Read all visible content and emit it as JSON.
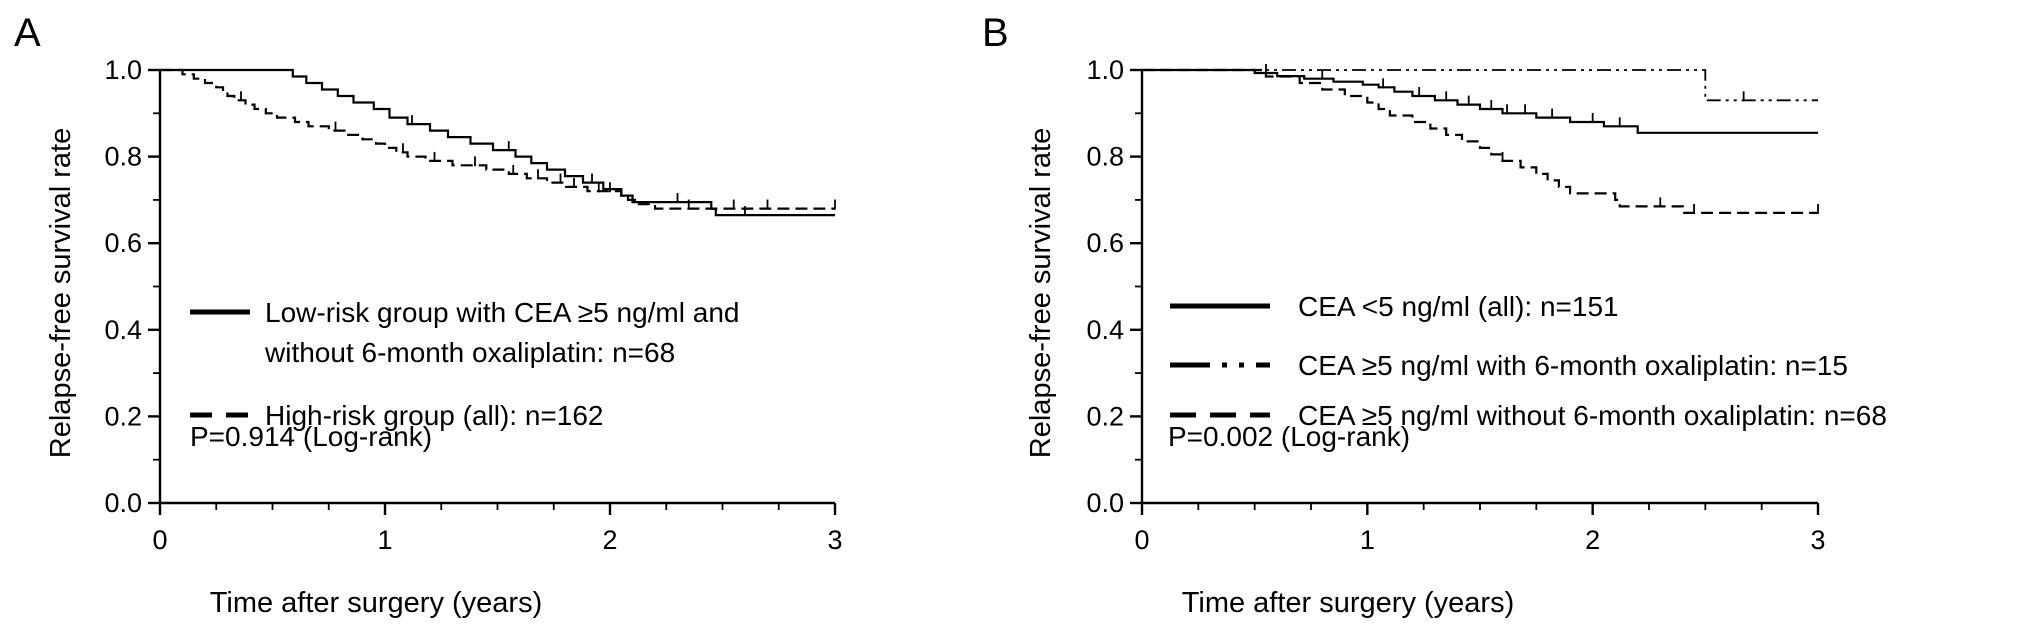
{
  "chart_data": [
    {
      "type": "line",
      "panel": "A",
      "xlabel": "Time after surgery (years)",
      "ylabel": "Relapse-free survival rate",
      "xlim": [
        0,
        3
      ],
      "ylim": [
        0,
        1.0
      ],
      "x_ticks": [
        "0",
        "1",
        "2",
        "3"
      ],
      "y_ticks": [
        "0.0",
        "0.2",
        "0.4",
        "0.6",
        "0.8",
        "1.0"
      ],
      "grid": false,
      "legend_position": "lower-left",
      "annotation": "P=0.914 (Log-rank)",
      "series": [
        {
          "name": "Low-risk group with CEA ≥5 ng/ml and without 6-month oxaliplatin: n=68",
          "legend_lines": [
            "Low-risk group with CEA ≥5 ng/ml and",
            "without 6-month oxaliplatin: n=68"
          ],
          "style": "solid",
          "steps": [
            [
              0,
              1.0
            ],
            [
              0.59,
              0.985
            ],
            [
              0.65,
              0.97
            ],
            [
              0.72,
              0.955
            ],
            [
              0.79,
              0.94
            ],
            [
              0.86,
              0.925
            ],
            [
              0.95,
              0.91
            ],
            [
              1.02,
              0.89
            ],
            [
              1.1,
              0.875
            ],
            [
              1.2,
              0.86
            ],
            [
              1.28,
              0.845
            ],
            [
              1.38,
              0.83
            ],
            [
              1.48,
              0.815
            ],
            [
              1.58,
              0.8
            ],
            [
              1.65,
              0.785
            ],
            [
              1.72,
              0.77
            ],
            [
              1.8,
              0.755
            ],
            [
              1.88,
              0.74
            ],
            [
              1.97,
              0.725
            ],
            [
              2.05,
              0.71
            ],
            [
              2.1,
              0.695
            ],
            [
              2.45,
              0.68
            ],
            [
              2.47,
              0.665
            ],
            [
              3.0,
              0.665
            ]
          ],
          "censored": [
            1.12,
            1.55,
            1.92,
            2.3,
            2.6
          ]
        },
        {
          "name": "High-risk group (all): n=162",
          "legend_lines": [
            "High-risk group (all): n=162"
          ],
          "style": "dashed",
          "steps": [
            [
              0,
              1.0
            ],
            [
              0.1,
              0.99
            ],
            [
              0.15,
              0.98
            ],
            [
              0.2,
              0.97
            ],
            [
              0.25,
              0.96
            ],
            [
              0.28,
              0.95
            ],
            [
              0.3,
              0.94
            ],
            [
              0.33,
              0.93
            ],
            [
              0.38,
              0.92
            ],
            [
              0.42,
              0.91
            ],
            [
              0.47,
              0.9
            ],
            [
              0.52,
              0.89
            ],
            [
              0.6,
              0.88
            ],
            [
              0.66,
              0.87
            ],
            [
              0.75,
              0.86
            ],
            [
              0.82,
              0.85
            ],
            [
              0.9,
              0.84
            ],
            [
              0.96,
              0.83
            ],
            [
              1.0,
              0.82
            ],
            [
              1.05,
              0.81
            ],
            [
              1.1,
              0.8
            ],
            [
              1.18,
              0.79
            ],
            [
              1.3,
              0.78
            ],
            [
              1.45,
              0.77
            ],
            [
              1.55,
              0.76
            ],
            [
              1.63,
              0.75
            ],
            [
              1.72,
              0.74
            ],
            [
              1.8,
              0.73
            ],
            [
              1.9,
              0.72
            ],
            [
              2.05,
              0.71
            ],
            [
              2.08,
              0.7
            ],
            [
              2.12,
              0.69
            ],
            [
              2.2,
              0.68
            ],
            [
              3.0,
              0.68
            ]
          ],
          "censored": [
            0.36,
            0.78,
            1.08,
            1.22,
            1.4,
            1.57,
            1.68,
            1.78,
            1.84,
            1.95,
            2.0,
            2.35,
            2.55,
            2.7,
            3.0
          ]
        }
      ]
    },
    {
      "type": "line",
      "panel": "B",
      "xlabel": "Time after surgery (years)",
      "ylabel": "Relapse-free survival rate",
      "xlim": [
        0,
        3
      ],
      "ylim": [
        0,
        1.0
      ],
      "x_ticks": [
        "0",
        "1",
        "2",
        "3"
      ],
      "y_ticks": [
        "0.0",
        "0.2",
        "0.4",
        "0.6",
        "0.8",
        "1.0"
      ],
      "grid": false,
      "legend_position": "lower-left",
      "annotation": "P=0.002 (Log-rank)",
      "series": [
        {
          "name": "CEA <5 ng/ml (all): n=151",
          "legend_lines": [
            "CEA <5 ng/ml (all): n=151"
          ],
          "style": "solid",
          "steps": [
            [
              0,
              1.0
            ],
            [
              0.5,
              0.993
            ],
            [
              0.6,
              0.986
            ],
            [
              0.72,
              0.98
            ],
            [
              0.85,
              0.973
            ],
            [
              0.98,
              0.966
            ],
            [
              1.05,
              0.96
            ],
            [
              1.12,
              0.95
            ],
            [
              1.2,
              0.94
            ],
            [
              1.3,
              0.93
            ],
            [
              1.4,
              0.92
            ],
            [
              1.5,
              0.91
            ],
            [
              1.6,
              0.9
            ],
            [
              1.75,
              0.89
            ],
            [
              1.9,
              0.88
            ],
            [
              2.05,
              0.87
            ],
            [
              2.2,
              0.855
            ],
            [
              3.0,
              0.855
            ]
          ],
          "censored": [
            0.55,
            0.8,
            1.07,
            1.23,
            1.35,
            1.45,
            1.55,
            1.62,
            1.7,
            1.82,
            2.0,
            2.12
          ]
        },
        {
          "name": "CEA ≥5 ng/ml with 6-month oxaliplatin: n=15",
          "legend_lines": [
            "CEA ≥5 ng/ml with 6-month oxaliplatin: n=15"
          ],
          "style": "dashdot",
          "steps": [
            [
              0,
              1.0
            ],
            [
              2.5,
              0.93
            ],
            [
              3.0,
              0.93
            ]
          ],
          "censored": [
            2.67
          ]
        },
        {
          "name": "CEA ≥5 ng/ml without 6-month oxaliplatin: n=68",
          "legend_lines": [
            "CEA ≥5 ng/ml without 6-month oxaliplatin: n=68"
          ],
          "style": "dashed",
          "steps": [
            [
              0,
              1.0
            ],
            [
              0.55,
              0.985
            ],
            [
              0.7,
              0.97
            ],
            [
              0.8,
              0.955
            ],
            [
              0.9,
              0.94
            ],
            [
              1.0,
              0.925
            ],
            [
              1.05,
              0.91
            ],
            [
              1.1,
              0.895
            ],
            [
              1.2,
              0.88
            ],
            [
              1.28,
              0.865
            ],
            [
              1.35,
              0.85
            ],
            [
              1.42,
              0.835
            ],
            [
              1.5,
              0.82
            ],
            [
              1.55,
              0.805
            ],
            [
              1.6,
              0.79
            ],
            [
              1.68,
              0.775
            ],
            [
              1.75,
              0.76
            ],
            [
              1.8,
              0.745
            ],
            [
              1.85,
              0.73
            ],
            [
              1.9,
              0.715
            ],
            [
              2.1,
              0.7
            ],
            [
              2.12,
              0.685
            ],
            [
              2.4,
              0.67
            ],
            [
              3.0,
              0.67
            ]
          ],
          "censored": [
            1.6,
            2.3,
            2.45,
            3.0
          ]
        }
      ]
    }
  ]
}
